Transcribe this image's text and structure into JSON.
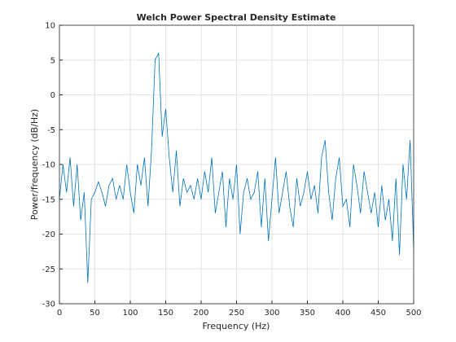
{
  "chart_data": {
    "type": "line",
    "title": "Welch Power Spectral Density Estimate",
    "xlabel": "Frequency (Hz)",
    "ylabel": "Power/frequency (dB/Hz)",
    "x": [
      0,
      5,
      10,
      15,
      20,
      25,
      30,
      35,
      40,
      45,
      50,
      55,
      60,
      65,
      70,
      75,
      80,
      85,
      90,
      95,
      100,
      105,
      110,
      115,
      120,
      125,
      130,
      135,
      140,
      145,
      150,
      155,
      160,
      165,
      170,
      175,
      180,
      185,
      190,
      195,
      200,
      205,
      210,
      215,
      220,
      225,
      230,
      235,
      240,
      245,
      250,
      255,
      260,
      265,
      270,
      275,
      280,
      285,
      290,
      295,
      300,
      305,
      310,
      315,
      320,
      325,
      330,
      335,
      340,
      345,
      350,
      355,
      360,
      365,
      370,
      375,
      380,
      385,
      390,
      395,
      400,
      405,
      410,
      415,
      420,
      425,
      430,
      435,
      440,
      445,
      450,
      455,
      460,
      465,
      470,
      475,
      480,
      485,
      490,
      495,
      500
    ],
    "series": [
      {
        "color": "#0072bd",
        "values": [
          -15,
          -10,
          -14,
          -9,
          -16,
          -10,
          -18,
          -14,
          -27,
          -15,
          -14,
          -12.5,
          -14,
          -16,
          -13,
          -12,
          -15,
          -13,
          -15,
          -10,
          -14,
          -17,
          -10,
          -13,
          -9,
          -16,
          -8,
          5,
          6,
          -6,
          -2,
          -9,
          -14,
          -8,
          -16,
          -12,
          -14,
          -13,
          -15,
          -12,
          -15,
          -11,
          -14,
          -9,
          -17,
          -14,
          -11,
          -19,
          -12,
          -15,
          -10,
          -20,
          -14,
          -12,
          -15,
          -14,
          -11,
          -19,
          -12,
          -21,
          -15,
          -9,
          -17,
          -14,
          -11,
          -16,
          -19,
          -12,
          -16,
          -14,
          -11,
          -15,
          -13,
          -17,
          -9,
          -6.5,
          -14,
          -18,
          -12,
          -9,
          -16,
          -15,
          -19,
          -10,
          -13,
          -17,
          -11,
          -14,
          -17,
          -14,
          -19,
          -13,
          -18,
          -15,
          -21,
          -12,
          -23,
          -10,
          -15,
          -6.5,
          -22
        ]
      }
    ],
    "xlim": [
      0,
      500
    ],
    "xticks": [
      0,
      50,
      100,
      150,
      200,
      250,
      300,
      350,
      400,
      450,
      500
    ],
    "ylim": [
      -30,
      10
    ],
    "yticks": [
      -30,
      -25,
      -20,
      -15,
      -10,
      -5,
      0,
      5,
      10
    ],
    "grid": true
  }
}
